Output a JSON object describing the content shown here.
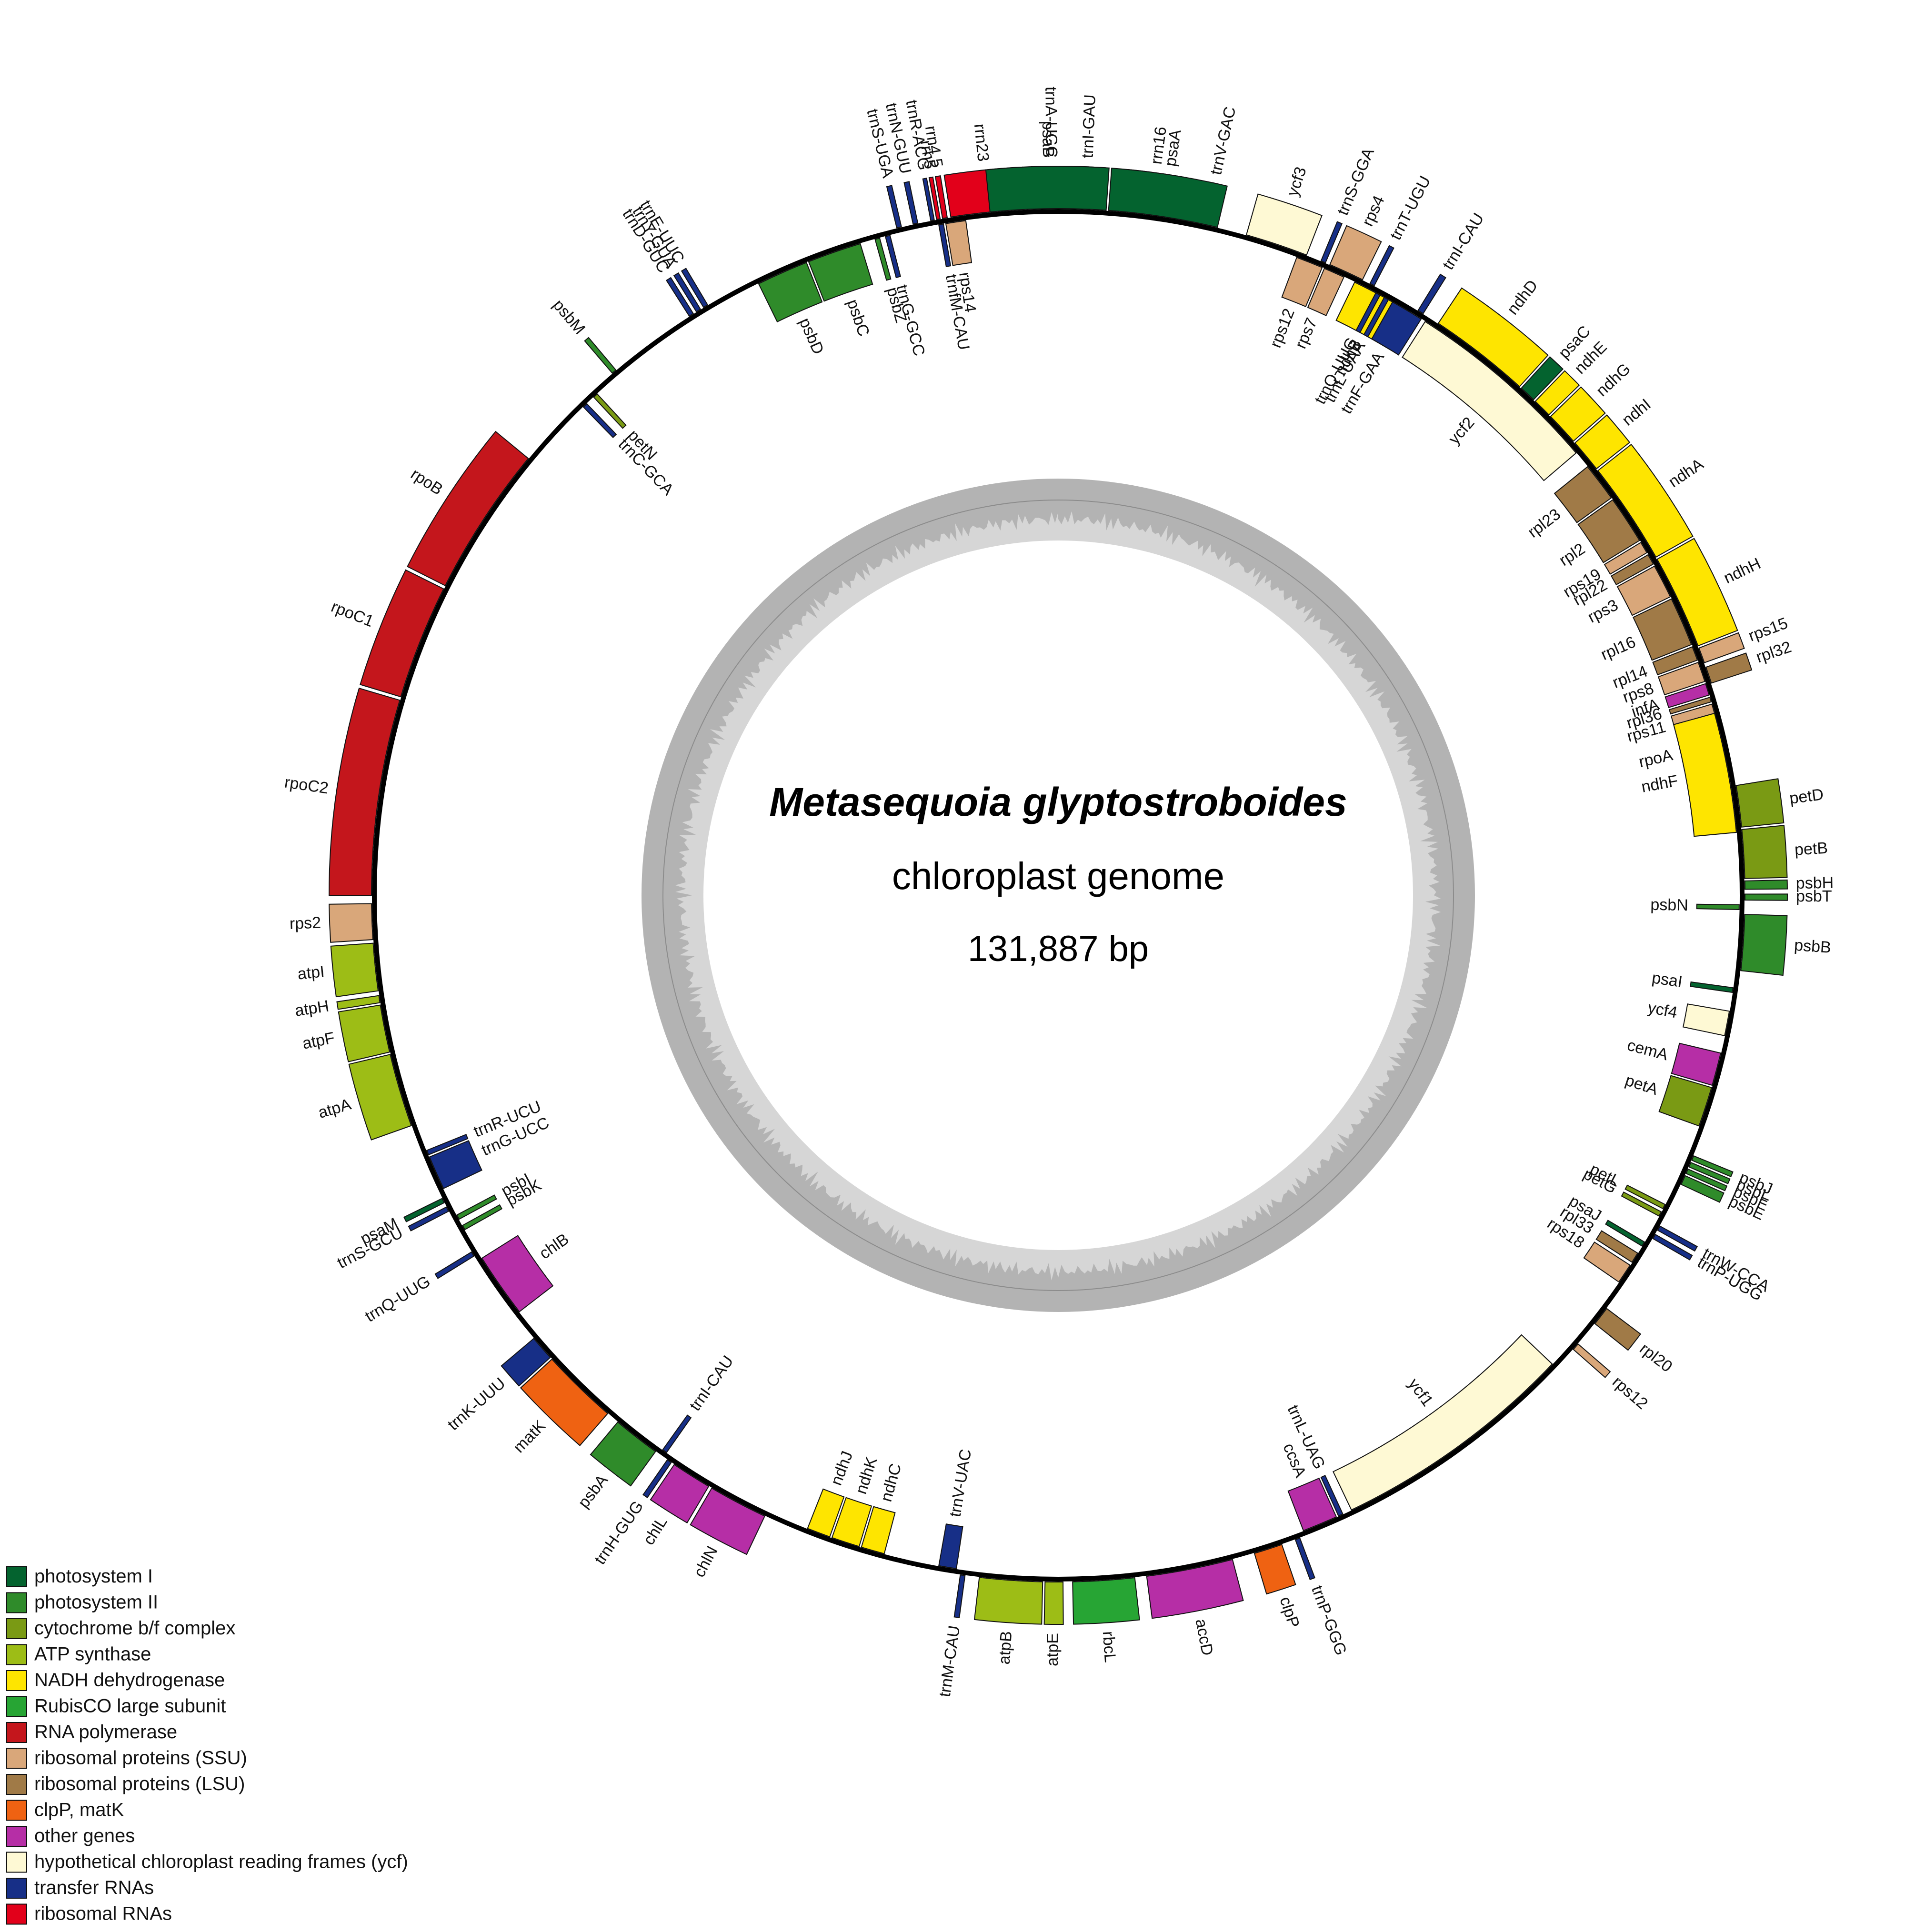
{
  "title": {
    "organism": "Metasequoia glyptostroboides",
    "subtitle": "chloroplast genome",
    "size": "131,887 bp"
  },
  "legend": [
    {
      "key": "psI",
      "label": "photosystem I",
      "color": "#04632f"
    },
    {
      "key": "psII",
      "label": "photosystem II",
      "color": "#2f8b2a"
    },
    {
      "key": "cyt",
      "label": "cytochrome b/f complex",
      "color": "#7a9a14"
    },
    {
      "key": "atp",
      "label": "ATP synthase",
      "color": "#9dbd16"
    },
    {
      "key": "ndh",
      "label": "NADH dehydrogenase",
      "color": "#fee500"
    },
    {
      "key": "rbc",
      "label": "RubisCO large subunit",
      "color": "#27a534"
    },
    {
      "key": "rpo",
      "label": "RNA polymerase",
      "color": "#c4161c"
    },
    {
      "key": "ssu",
      "label": "ribosomal proteins (SSU)",
      "color": "#d9a77a"
    },
    {
      "key": "lsu",
      "label": "ribosomal proteins (LSU)",
      "color": "#a07a47"
    },
    {
      "key": "clp",
      "label": "clpP, matK",
      "color": "#ef6212"
    },
    {
      "key": "oth",
      "label": "other genes",
      "color": "#b62ea6"
    },
    {
      "key": "ycf",
      "label": "hypothetical chloroplast reading frames (ycf)",
      "color": "#fef9d4"
    },
    {
      "key": "trn",
      "label": "transfer RNAs",
      "color": "#172f87"
    },
    {
      "key": "rrn",
      "label": "ribosomal RNAs",
      "color": "#e2001a"
    }
  ],
  "genes": [
    {
      "name": "rrn23",
      "cat": "rrn",
      "start": -9.0,
      "end": -2.8,
      "side": "out"
    },
    {
      "name": "trnA-UGC",
      "cat": "trn",
      "start": -2.1,
      "end": 0.9,
      "side": "out"
    },
    {
      "name": "trnI-GAU",
      "cat": "trn",
      "start": 1.0,
      "end": 3.7,
      "side": "out"
    },
    {
      "name": "rrn16",
      "cat": "rrn",
      "start": 5.5,
      "end": 9.9,
      "side": "out"
    },
    {
      "name": "trnV-GAC",
      "cat": "trn",
      "start": 12.2,
      "end": 12.6,
      "side": "out"
    },
    {
      "name": "rrn4.5",
      "cat": "rrn",
      "start": -9.7,
      "end": -9.3,
      "side": "out"
    },
    {
      "name": "rrn5",
      "cat": "rrn",
      "start": -10.2,
      "end": -9.9,
      "side": "out"
    },
    {
      "name": "trnR-ACG",
      "cat": "trn",
      "start": -10.7,
      "end": -10.4,
      "side": "out"
    },
    {
      "name": "trnN-GUU",
      "cat": "trn",
      "start": -12.2,
      "end": -11.8,
      "side": "out"
    },
    {
      "name": "rps12",
      "cat": "ssu",
      "start": 20.5,
      "end": 22.8,
      "side": "in"
    },
    {
      "name": "rps7",
      "cat": "ssu",
      "start": 23.0,
      "end": 24.8,
      "side": "in"
    },
    {
      "name": "ndhB",
      "cat": "ndh",
      "start": 25.8,
      "end": 31.0,
      "side": "in"
    },
    {
      "name": "trnI-CAU",
      "cat": "trn",
      "start": 31.6,
      "end": 32.1,
      "side": "out"
    },
    {
      "name": "ycf2",
      "cat": "ycf",
      "start": 32.6,
      "end": 49.5,
      "side": "in"
    },
    {
      "name": "rpl23",
      "cat": "lsu",
      "start": 51.0,
      "end": 54.3,
      "side": "in"
    },
    {
      "name": "rpl2",
      "cat": "lsu",
      "start": 54.5,
      "end": 58.6,
      "side": "in"
    },
    {
      "name": "rps19",
      "cat": "ssu",
      "start": 58.8,
      "end": 59.8,
      "side": "in"
    },
    {
      "name": "rpl22",
      "cat": "lsu",
      "start": 60.0,
      "end": 60.9,
      "side": "in"
    },
    {
      "name": "rps3",
      "cat": "ssu",
      "start": 61.1,
      "end": 64.0,
      "side": "in"
    },
    {
      "name": "rpl16",
      "cat": "lsu",
      "start": 64.2,
      "end": 68.4,
      "side": "in"
    },
    {
      "name": "rpl14",
      "cat": "lsu",
      "start": 68.6,
      "end": 69.8,
      "side": "in"
    },
    {
      "name": "rps8",
      "cat": "ssu",
      "start": 70.0,
      "end": 71.7,
      "side": "in"
    },
    {
      "name": "infA",
      "cat": "oth",
      "start": 71.9,
      "end": 72.9,
      "side": "in"
    },
    {
      "name": "rpl36",
      "cat": "lsu",
      "start": 73.1,
      "end": 73.5,
      "side": "in"
    },
    {
      "name": "rps11",
      "cat": "ssu",
      "start": 73.7,
      "end": 75.4,
      "side": "in"
    },
    {
      "name": "rpoA",
      "cat": "rpo",
      "start": 75.6,
      "end": 78.8,
      "side": "in"
    },
    {
      "name": "petD",
      "cat": "cyt",
      "start": 80.8,
      "end": 84.3,
      "side": "out"
    },
    {
      "name": "petB",
      "cat": "cyt",
      "start": 84.5,
      "end": 88.6,
      "side": "out"
    },
    {
      "name": "psbH",
      "cat": "psII",
      "start": 88.8,
      "end": 89.5,
      "side": "out"
    },
    {
      "name": "psbT",
      "cat": "psII",
      "start": 89.9,
      "end": 90.4,
      "side": "out"
    },
    {
      "name": "psbN",
      "cat": "psII",
      "start": 90.8,
      "end": 91.2,
      "side": "in"
    },
    {
      "name": "psbB",
      "cat": "psII",
      "start": 91.6,
      "end": 96.3,
      "side": "out"
    },
    {
      "name": "psaI",
      "cat": "psI",
      "start": 97.8,
      "end": 98.2,
      "side": "in"
    },
    {
      "name": "ycf4",
      "cat": "ycf",
      "start": 99.8,
      "end": 101.9,
      "side": "in"
    },
    {
      "name": "cemA",
      "cat": "oth",
      "start": 103.4,
      "end": 106.2,
      "side": "in"
    },
    {
      "name": "petA",
      "cat": "cyt",
      "start": 106.4,
      "end": 109.8,
      "side": "in"
    },
    {
      "name": "psbJ",
      "cat": "psII",
      "start": 112.3,
      "end": 112.7,
      "side": "out"
    },
    {
      "name": "psbL",
      "cat": "psII",
      "start": 112.9,
      "end": 113.3,
      "side": "out"
    },
    {
      "name": "psbF",
      "cat": "psII",
      "start": 113.5,
      "end": 113.9,
      "side": "out"
    },
    {
      "name": "psbE",
      "cat": "psII",
      "start": 114.1,
      "end": 114.9,
      "side": "out"
    },
    {
      "name": "petL",
      "cat": "cyt",
      "start": 117.0,
      "end": 117.4,
      "side": "in"
    },
    {
      "name": "petG",
      "cat": "cyt",
      "start": 117.7,
      "end": 118.1,
      "side": "in"
    },
    {
      "name": "trnW-CCA",
      "cat": "trn",
      "start": 118.8,
      "end": 119.2,
      "side": "out"
    },
    {
      "name": "trnP-UGG",
      "cat": "trn",
      "start": 119.6,
      "end": 120.0,
      "side": "out"
    },
    {
      "name": "psaJ",
      "cat": "psI",
      "start": 120.6,
      "end": 121.0,
      "side": "in"
    },
    {
      "name": "rpl33",
      "cat": "lsu",
      "start": 121.7,
      "end": 122.6,
      "side": "in"
    },
    {
      "name": "rps18",
      "cat": "ssu",
      "start": 122.9,
      "end": 124.6,
      "side": "in"
    },
    {
      "name": "rpl20",
      "cat": "lsu",
      "start": 127.0,
      "end": 128.6,
      "side": "out"
    },
    {
      "name": "rps12",
      "cat": "ssu",
      "start": 130.8,
      "end": 131.4,
      "side": "out"
    },
    {
      "name": "ycf1",
      "cat": "ycf",
      "start": 133.5,
      "end": 154.5,
      "side": "in"
    },
    {
      "name": "trnL-UAG",
      "cat": "trn",
      "start": 155.3,
      "end": 155.7,
      "side": "in"
    },
    {
      "name": "ccsA",
      "cat": "oth",
      "start": 155.9,
      "end": 158.9,
      "side": "in"
    },
    {
      "name": "trnP-GGG",
      "cat": "trn",
      "start": 159.4,
      "end": 159.8,
      "side": "out"
    },
    {
      "name": "clpP",
      "cat": "clp",
      "start": 161.0,
      "end": 163.4,
      "side": "out"
    },
    {
      "name": "accD",
      "cat": "oth",
      "start": 165.3,
      "end": 172.6,
      "side": "out"
    },
    {
      "name": "rbcL",
      "cat": "rbc",
      "start": 173.6,
      "end": 178.8,
      "side": "out"
    },
    {
      "name": "atpE",
      "cat": "atp",
      "start": 179.6,
      "end": 181.1,
      "side": "out"
    },
    {
      "name": "atpB",
      "cat": "atp",
      "start": 181.3,
      "end": 186.6,
      "side": "out"
    },
    {
      "name": "trnM-CAU",
      "cat": "trn",
      "start": 187.8,
      "end": 188.2,
      "side": "out"
    },
    {
      "name": "trnV-UAC",
      "cat": "trn",
      "start": 188.6,
      "end": 190.1,
      "side": "in"
    },
    {
      "name": "ndhC",
      "cat": "ndh",
      "start": 194.8,
      "end": 196.8,
      "side": "in"
    },
    {
      "name": "ndhK",
      "cat": "ndh",
      "start": 197.0,
      "end": 199.4,
      "side": "in"
    },
    {
      "name": "ndhJ",
      "cat": "ndh",
      "start": 199.6,
      "end": 201.6,
      "side": "in"
    },
    {
      "name": "chlN",
      "cat": "oth",
      "start": 205.3,
      "end": 210.3,
      "side": "out"
    },
    {
      "name": "chlL",
      "cat": "oth",
      "start": 210.6,
      "end": 214.0,
      "side": "out"
    },
    {
      "name": "trnH-GUG",
      "cat": "trn",
      "start": 214.3,
      "end": 214.7,
      "side": "out"
    },
    {
      "name": "trnI-CAU",
      "cat": "trn",
      "start": 215.1,
      "end": 215.5,
      "side": "in"
    },
    {
      "name": "psbA",
      "cat": "psII",
      "start": 215.9,
      "end": 219.9,
      "side": "out"
    },
    {
      "name": "matK",
      "cat": "clp",
      "start": 221.0,
      "end": 227.5,
      "side": "out"
    },
    {
      "name": "trnK-UUU",
      "cat": "trn",
      "start": 227.7,
      "end": 229.8,
      "side": "out"
    },
    {
      "name": "chlB",
      "cat": "oth",
      "start": 232.3,
      "end": 237.8,
      "side": "in"
    },
    {
      "name": "trnQ-UUG",
      "cat": "trn",
      "start": 238.3,
      "end": 238.7,
      "side": "out"
    },
    {
      "name": "psbK",
      "cat": "psII",
      "start": 240.6,
      "end": 241.0,
      "side": "in"
    },
    {
      "name": "psbI",
      "cat": "psII",
      "start": 241.6,
      "end": 242.0,
      "side": "in"
    },
    {
      "name": "trnS-GCU",
      "cat": "trn",
      "start": 242.6,
      "end": 243.0,
      "side": "out"
    },
    {
      "name": "psaM",
      "cat": "psI",
      "start": 243.4,
      "end": 243.8,
      "side": "out"
    },
    {
      "name": "trnG-UCC",
      "cat": "trn",
      "start": 244.5,
      "end": 247.4,
      "side": "in"
    },
    {
      "name": "trnR-UCU",
      "cat": "trn",
      "start": 247.6,
      "end": 248.0,
      "side": "in"
    },
    {
      "name": "atpA",
      "cat": "atp",
      "start": 250.4,
      "end": 256.6,
      "side": "out"
    },
    {
      "name": "atpF",
      "cat": "atp",
      "start": 256.8,
      "end": 260.8,
      "side": "out"
    },
    {
      "name": "atpH",
      "cat": "atp",
      "start": 261.0,
      "end": 261.6,
      "side": "out"
    },
    {
      "name": "atpI",
      "cat": "atp",
      "start": 262.0,
      "end": 266.0,
      "side": "out"
    },
    {
      "name": "rps2",
      "cat": "ssu",
      "start": 266.3,
      "end": 269.3,
      "side": "out"
    },
    {
      "name": "rpoC2",
      "cat": "rpo",
      "start": 270.0,
      "end": 286.5,
      "side": "out"
    },
    {
      "name": "rpoC1",
      "cat": "rpo",
      "start": 286.8,
      "end": 296.5,
      "side": "out"
    },
    {
      "name": "rpoB",
      "cat": "rpo",
      "start": 296.8,
      "end": 309.5,
      "side": "out"
    },
    {
      "name": "trnC-GCA",
      "cat": "trn",
      "start": 315.8,
      "end": 316.2,
      "side": "in"
    },
    {
      "name": "petN",
      "cat": "cyt",
      "start": 317.0,
      "end": 317.4,
      "side": "in"
    },
    {
      "name": "psbM",
      "cat": "psII",
      "start": 319.5,
      "end": 319.9,
      "side": "out"
    },
    {
      "name": "trnD-GUC",
      "cat": "trn",
      "start": 327.5,
      "end": 327.9,
      "side": "out"
    },
    {
      "name": "trnY-GUA",
      "cat": "trn",
      "start": 328.2,
      "end": 328.6,
      "side": "out"
    },
    {
      "name": "trnE-UUC",
      "cat": "trn",
      "start": 328.9,
      "end": 329.3,
      "side": "out"
    },
    {
      "name": "psbD",
      "cat": "psII",
      "start": 333.9,
      "end": 338.3,
      "side": "in"
    },
    {
      "name": "psbC",
      "cat": "psII",
      "start": 338.5,
      "end": 343.1,
      "side": "in"
    },
    {
      "name": "psbZ",
      "cat": "psII",
      "start": 344.4,
      "end": 344.8,
      "side": "in"
    },
    {
      "name": "trnG-GCC",
      "cat": "trn",
      "start": 345.3,
      "end": 345.7,
      "side": "in"
    },
    {
      "name": "trnS-UGA",
      "cat": "trn",
      "start": 346.4,
      "end": 346.8,
      "side": "out"
    },
    {
      "name": "trnfM-CAU",
      "cat": "trn",
      "start": 349.9,
      "end": 350.3,
      "side": "in"
    },
    {
      "name": "rps14",
      "cat": "ssu",
      "start": 350.5,
      "end": 352.2,
      "side": "in"
    },
    {
      "name": "psaB",
      "cat": "psI",
      "start": 354.3,
      "end": 364.0,
      "side": "out"
    },
    {
      "name": "psaA",
      "cat": "psI",
      "start": 364.2,
      "end": 373.4,
      "side": "out"
    },
    {
      "name": "ycf3",
      "cat": "ycf",
      "start": 375.9,
      "end": 381.2,
      "side": "out"
    },
    {
      "name": "trnS-GGA",
      "cat": "trn",
      "start": 382.5,
      "end": 382.9,
      "side": "out"
    },
    {
      "name": "rps4",
      "cat": "ssu",
      "start": 383.3,
      "end": 386.3,
      "side": "out"
    },
    {
      "name": "trnT-UGU",
      "cat": "trn",
      "start": 387.0,
      "end": 387.4,
      "side": "out"
    },
    {
      "name": "trnQ-UUG",
      "cat": "trn",
      "start": 387.8,
      "end": 388.2,
      "side": "in"
    },
    {
      "name": "trnL-UAA",
      "cat": "trn",
      "start": 388.6,
      "end": 389.0,
      "side": "in"
    },
    {
      "name": "trnF-GAA",
      "cat": "trn",
      "start": 389.4,
      "end": 392.2,
      "side": "in"
    },
    {
      "name": "ndhD",
      "cat": "ndh",
      "start": 393.6,
      "end": 402.2,
      "side": "out"
    },
    {
      "name": "psaC",
      "cat": "psI",
      "start": 402.4,
      "end": 403.8,
      "side": "out"
    },
    {
      "name": "ndhE",
      "cat": "ndh",
      "start": 404.0,
      "end": 405.6,
      "side": "out"
    },
    {
      "name": "ndhG",
      "cat": "ndh",
      "start": 405.8,
      "end": 408.6,
      "side": "out"
    },
    {
      "name": "ndhI",
      "cat": "ndh",
      "start": 408.8,
      "end": 411.6,
      "side": "out"
    },
    {
      "name": "ndhA",
      "cat": "ndh",
      "start": 411.8,
      "end": 420.5,
      "side": "out"
    },
    {
      "name": "ndhH",
      "cat": "ndh",
      "start": 420.7,
      "end": 428.7,
      "side": "out"
    },
    {
      "name": "rps15",
      "cat": "ssu",
      "start": 428.9,
      "end": 430.2,
      "side": "out"
    },
    {
      "name": "rpl32",
      "cat": "lsu",
      "start": 430.6,
      "end": 432.0,
      "side": "out"
    },
    {
      "name": "ndhF",
      "cat": "ndh",
      "start": 434.5,
      "end": 444.7,
      "side": "in"
    }
  ]
}
